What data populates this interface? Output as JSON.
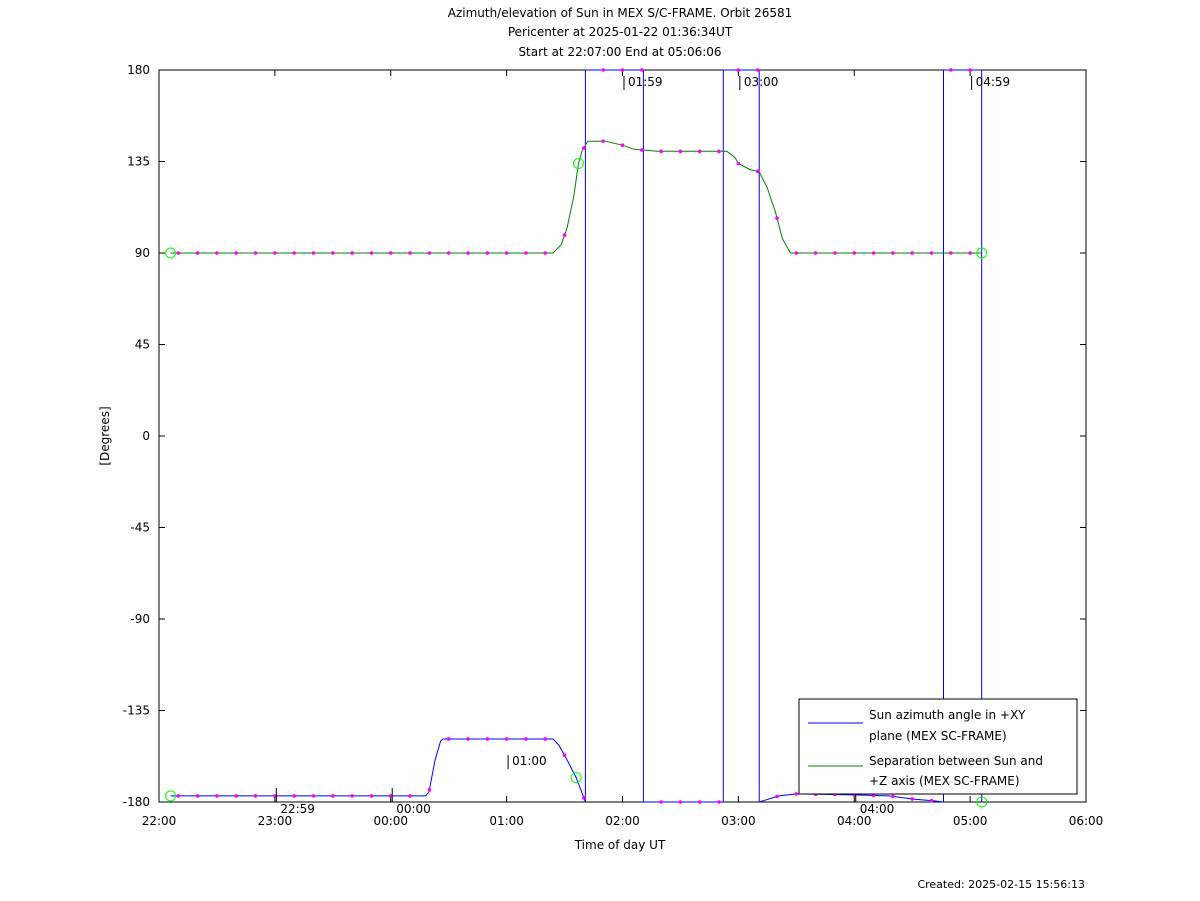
{
  "header": {
    "title_line1": "Azimuth/elevation of Sun in MEX S/C-FRAME.  Orbit 26581",
    "title_line2": "Pericenter at 2025-01-22 01:36:34UT",
    "title_line3": "Start at 22:07:00 End at 05:06:06"
  },
  "footer": {
    "created": "Created: 2025-02-15 15:56:13"
  },
  "colors": {
    "azimuth": "#0000ff",
    "separation": "#008000",
    "markers": "#ff00ff",
    "circles": "#00ff00"
  },
  "chart_data": {
    "type": "line",
    "xlabel": "Time of day UT",
    "ylabel": "[Degrees]",
    "x_unit": "hours since 22:00 UT",
    "xlim": [
      0,
      8
    ],
    "ylim": [
      -180,
      180
    ],
    "x_ticks": [
      {
        "x": 0,
        "label": "22:00"
      },
      {
        "x": 1,
        "label": "23:00"
      },
      {
        "x": 2,
        "label": "00:00"
      },
      {
        "x": 3,
        "label": "01:00"
      },
      {
        "x": 4,
        "label": "02:00"
      },
      {
        "x": 5,
        "label": "03:00"
      },
      {
        "x": 6,
        "label": "04:00"
      },
      {
        "x": 7,
        "label": "05:00"
      },
      {
        "x": 8,
        "label": "06:00"
      }
    ],
    "y_ticks": [
      {
        "y": 180,
        "label": "180"
      },
      {
        "y": 135,
        "label": "135"
      },
      {
        "y": 90,
        "label": "90"
      },
      {
        "y": 45,
        "label": "45"
      },
      {
        "y": 0,
        "label": "0"
      },
      {
        "y": -45,
        "label": "-45"
      },
      {
        "y": -90,
        "label": "-90"
      },
      {
        "y": -135,
        "label": "-135"
      },
      {
        "y": -180,
        "label": "-180"
      }
    ],
    "legend": {
      "position": "bottom-right",
      "entries": [
        {
          "line1": "Sun azimuth angle in +XY",
          "line2": "plane (MEX SC-FRAME)"
        },
        {
          "line1": "Separation between Sun and",
          "line2": "+Z axis (MEX SC-FRAME)"
        }
      ]
    },
    "series": [
      {
        "name": "Sun azimuth angle in +XY plane (MEX SC-FRAME)",
        "segments": [
          [
            [
              0.1,
              -177
            ],
            [
              2.3,
              -177
            ],
            [
              2.33,
              -175
            ],
            [
              2.38,
              -160
            ],
            [
              2.43,
              -150
            ],
            [
              2.45,
              -149
            ],
            [
              3.4,
              -149
            ],
            [
              3.45,
              -152
            ],
            [
              3.5,
              -157
            ],
            [
              3.6,
              -168
            ],
            [
              3.68,
              -180
            ]
          ],
          [
            [
              3.68,
              -180
            ],
            [
              3.68,
              180
            ]
          ],
          [
            [
              3.68,
              180
            ],
            [
              4.18,
              180
            ]
          ],
          [
            [
              4.18,
              180
            ],
            [
              4.18,
              -180
            ]
          ],
          [
            [
              4.18,
              -180
            ],
            [
              4.87,
              -180
            ]
          ],
          [
            [
              4.87,
              -180
            ],
            [
              4.87,
              180
            ]
          ],
          [
            [
              4.87,
              180
            ],
            [
              5.18,
              180
            ]
          ],
          [
            [
              5.18,
              180
            ],
            [
              5.18,
              -180
            ]
          ],
          [
            [
              5.18,
              -180
            ],
            [
              5.35,
              -177
            ],
            [
              5.5,
              -176
            ],
            [
              6.0,
              -176.5
            ],
            [
              6.3,
              -177
            ],
            [
              6.5,
              -178.5
            ],
            [
              6.7,
              -179.5
            ],
            [
              6.77,
              -180
            ]
          ],
          [
            [
              6.77,
              -180
            ],
            [
              6.77,
              180
            ]
          ],
          [
            [
              6.77,
              180
            ],
            [
              7.1,
              180
            ]
          ],
          [
            [
              7.1,
              180
            ],
            [
              7.1,
              -180
            ]
          ]
        ]
      },
      {
        "name": "Separation between Sun and +Z axis (MEX SC-FRAME)",
        "segments": [
          [
            [
              0.1,
              90
            ],
            [
              3.4,
              90
            ],
            [
              3.47,
              94
            ],
            [
              3.52,
              102
            ],
            [
              3.58,
              118
            ],
            [
              3.62,
              134
            ],
            [
              3.65,
              140
            ],
            [
              3.7,
              145
            ],
            [
              3.85,
              145
            ],
            [
              4.0,
              143
            ],
            [
              4.1,
              141
            ],
            [
              4.3,
              140
            ],
            [
              4.9,
              140
            ],
            [
              4.97,
              137
            ],
            [
              5.0,
              134
            ],
            [
              5.1,
              131
            ],
            [
              5.18,
              130
            ],
            [
              5.25,
              122
            ],
            [
              5.32,
              110
            ],
            [
              5.38,
              97
            ],
            [
              5.45,
              90
            ],
            [
              6.0,
              90
            ],
            [
              7.1,
              90
            ]
          ]
        ]
      }
    ],
    "annotations": [
      {
        "x": 1.03,
        "y": -180,
        "label": "22:59"
      },
      {
        "x": 2.03,
        "y": -180,
        "label": "00:00"
      },
      {
        "x": 3.03,
        "y": -154,
        "label": "01:00"
      },
      {
        "x": 4.03,
        "y": 180,
        "label": "01:59"
      },
      {
        "x": 5.03,
        "y": 180,
        "label": "03:00"
      },
      {
        "x": 6.03,
        "y": -180,
        "label": "04:00"
      },
      {
        "x": 7.03,
        "y": 180,
        "label": "04:59"
      }
    ]
  }
}
